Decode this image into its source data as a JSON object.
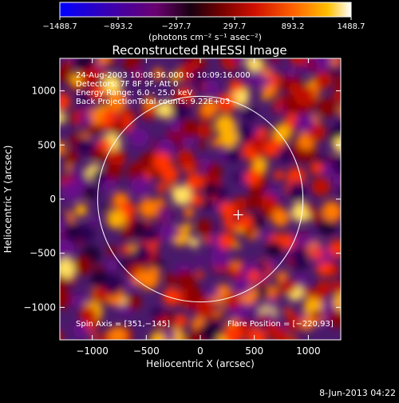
{
  "chart_data": {
    "type": "heatmap",
    "title": "Reconstructed RHESSI Image",
    "xlabel": "Heliocentric X (arcsec)",
    "ylabel": "Heliocentric Y (arcsec)",
    "xlim": [
      -1300,
      1300
    ],
    "ylim": [
      -1300,
      1300
    ],
    "x_ticks": [
      -1000,
      -500,
      0,
      500,
      1000
    ],
    "x_tick_labels": [
      "−1000",
      "−500",
      "0",
      "500",
      "1000"
    ],
    "y_ticks": [
      -1000,
      -500,
      0,
      500,
      1000
    ],
    "y_tick_labels": [
      "−1000",
      "−500",
      "0",
      "500",
      "1000"
    ],
    "colorbar": {
      "min": -1488.7,
      "max": 1488.7,
      "tick_values": [
        -1488.7,
        -893.2,
        -297.7,
        297.7,
        893.2,
        1488.7
      ],
      "tick_labels": [
        "−1488.7",
        "−893.2",
        "−297.7",
        "297.7",
        "893.2",
        "1488.7"
      ],
      "unit_label": "(photons cm⁻² s⁻¹ asec⁻²)",
      "colors": [
        "#0000ff",
        "#3a00b0",
        "#6a0070",
        "#000000",
        "#b00000",
        "#ff3000",
        "#ff9000",
        "#ffe000",
        "#ffffff"
      ]
    },
    "annotations": [
      "24-Aug-2003 10:08:36.000 to 10:09:16.000",
      "Detectors: 7F 8F 9F, Att 0",
      "Energy Range: 6.0 - 25.0 keV",
      "Back Projection"
    ],
    "total_counts": "Total counts: 9.22E+03",
    "spin_axis": "Spin Axis = [351,−145]",
    "flare_position": "Flare Position = [−220,93]",
    "spin_axis_value": [
      351,
      -145
    ],
    "solar_limb": {
      "center": [
        0,
        0
      ],
      "radius_arcsec": 950
    }
  },
  "footer_date": "8-Jun-2013 04:22"
}
